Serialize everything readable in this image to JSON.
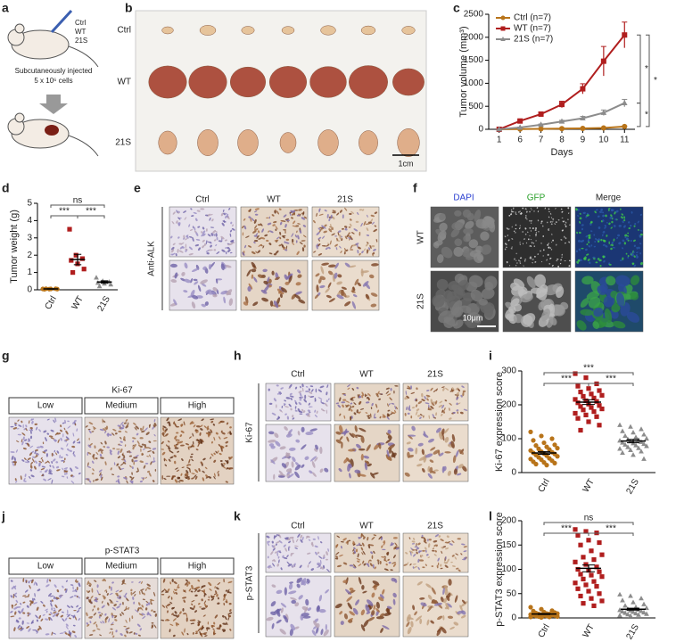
{
  "panel_labels": [
    "a",
    "b",
    "c",
    "d",
    "e",
    "f",
    "g",
    "h",
    "i",
    "j",
    "k",
    "l"
  ],
  "a": {
    "groups": [
      "Ctrl",
      "WT",
      "21S"
    ],
    "caption": [
      "Subcutaneously injected",
      "5 x 10⁶ cells"
    ]
  },
  "b": {
    "rows": [
      "Ctrl",
      "WT",
      "21S"
    ],
    "scale_bar": "1cm"
  },
  "e": {
    "columns": [
      "Ctrl",
      "WT",
      "21S"
    ],
    "row_label": "Anti-ALK"
  },
  "f": {
    "columns": [
      "DAPI",
      "GFP",
      "Merge"
    ],
    "rows": [
      "WT",
      "21S"
    ],
    "scale_bar": "10μm"
  },
  "g": {
    "title": "Ki-67",
    "columns": [
      "Low",
      "Medium",
      "High"
    ]
  },
  "h": {
    "columns": [
      "Ctrl",
      "WT",
      "21S"
    ],
    "row_label": "Ki-67"
  },
  "j": {
    "title": "p-STAT3",
    "columns": [
      "Low",
      "Medium",
      "High"
    ]
  },
  "k": {
    "columns": [
      "Ctrl",
      "WT",
      "21S"
    ],
    "row_label": "p-STAT3"
  },
  "chart_data": [
    {
      "type": "line",
      "ylabel": "Tumor volume (mm³)",
      "xlabel": "Days",
      "categories": [
        "1",
        "6",
        "7",
        "8",
        "9",
        "10",
        "11"
      ],
      "series": [
        {
          "name": "Ctrl (n=7)",
          "color": "#b8741a",
          "marker": "circle",
          "values": [
            0,
            5,
            10,
            15,
            20,
            30,
            60
          ],
          "errors": [
            0,
            3,
            4,
            5,
            6,
            8,
            12
          ]
        },
        {
          "name": "WT (n=7)",
          "color": "#b01e1e",
          "marker": "square",
          "values": [
            0,
            180,
            330,
            540,
            880,
            1480,
            2050
          ],
          "errors": [
            0,
            20,
            40,
            70,
            110,
            320,
            280
          ]
        },
        {
          "name": "21S (n=7)",
          "color": "#8c8c8c",
          "marker": "triangle",
          "values": [
            0,
            40,
            100,
            170,
            240,
            360,
            570
          ],
          "errors": [
            0,
            8,
            15,
            25,
            40,
            60,
            80
          ]
        }
      ],
      "ylim": [
        0,
        2500
      ],
      "yticks": [
        0,
        500,
        1000,
        1500,
        2000,
        2500
      ],
      "sig_wt_ctrl": "*",
      "sig_wt_21s": "*",
      "sig_21s_ctrl": "*"
    },
    {
      "type": "dot",
      "ylabel": "Tumor weight (g)",
      "categories": [
        "Ctrl",
        "WT",
        "21S"
      ],
      "colors": [
        "#b8741a",
        "#b01e1e",
        "#8c8c8c"
      ],
      "markers": [
        "circle",
        "square",
        "triangle"
      ],
      "values": [
        [
          0.05,
          0.04,
          0.06,
          0.03,
          0.05,
          0.04,
          0.06
        ],
        [
          3.5,
          2.0,
          1.8,
          1.7,
          1.5,
          1.2,
          1.0
        ],
        [
          0.7,
          0.5,
          0.45,
          0.4,
          0.35,
          0.3,
          0.2
        ]
      ],
      "means": [
        0.05,
        1.75,
        0.45
      ],
      "errors": [
        0.01,
        0.3,
        0.07
      ],
      "ylim": [
        0,
        5
      ],
      "yticks": [
        0,
        1,
        2,
        3,
        4,
        5
      ],
      "sig_ctrl_21s": "ns",
      "sig_ctrl_wt": "***",
      "sig_wt_21s": "***"
    },
    {
      "type": "dot",
      "ylabel": "Ki-67 expression score",
      "categories": [
        "Ctrl",
        "WT",
        "21S"
      ],
      "colors": [
        "#b8741a",
        "#b01e1e",
        "#8c8c8c"
      ],
      "markers": [
        "circle",
        "square",
        "triangle"
      ],
      "values": [
        [
          120,
          108,
          100,
          95,
          88,
          82,
          80,
          76,
          72,
          70,
          68,
          65,
          62,
          60,
          58,
          56,
          55,
          52,
          50,
          48,
          45,
          42,
          40,
          38,
          35,
          32,
          30,
          28,
          25,
          22
        ],
        [
          292,
          280,
          262,
          255,
          248,
          242,
          238,
          232,
          228,
          225,
          220,
          216,
          212,
          210,
          206,
          202,
          198,
          195,
          192,
          188,
          185,
          180,
          175,
          170,
          165,
          160,
          150,
          140,
          125
        ],
        [
          140,
          135,
          128,
          122,
          118,
          112,
          108,
          104,
          100,
          98,
          96,
          94,
          92,
          90,
          88,
          86,
          84,
          82,
          80,
          78,
          75,
          72,
          70,
          66,
          62,
          58,
          52,
          40
        ]
      ],
      "means": [
        58,
        208,
        93
      ],
      "errors": [
        4,
        7,
        5
      ],
      "ylim": [
        0,
        300
      ],
      "yticks": [
        0,
        100,
        200,
        300
      ],
      "sig_ctrl_21s": "***",
      "sig_ctrl_wt": "***",
      "sig_wt_21s": "***"
    },
    {
      "type": "dot",
      "ylabel": "p-STAT3 expression score",
      "categories": [
        "Ctrl",
        "WT",
        "21S"
      ],
      "colors": [
        "#b8741a",
        "#b01e1e",
        "#8c8c8c"
      ],
      "markers": [
        "circle",
        "square",
        "triangle"
      ],
      "values": [
        [
          22,
          18,
          15,
          14,
          12,
          11,
          10,
          9,
          9,
          8,
          8,
          7,
          7,
          6,
          6,
          5,
          5,
          4,
          4,
          3,
          3,
          2,
          2,
          1
        ],
        [
          182,
          178,
          175,
          170,
          160,
          155,
          150,
          138,
          130,
          125,
          120,
          115,
          110,
          105,
          100,
          98,
          95,
          90,
          88,
          85,
          80,
          75,
          72,
          68,
          65,
          60,
          55,
          50,
          45,
          40,
          35,
          30,
          25
        ],
        [
          48,
          45,
          40,
          36,
          32,
          28,
          25,
          22,
          20,
          18,
          17,
          16,
          15,
          14,
          13,
          12,
          11,
          10,
          9,
          8,
          7,
          6,
          5,
          4
        ]
      ],
      "means": [
        8,
        102,
        18
      ],
      "errors": [
        1,
        7,
        2
      ],
      "ylim": [
        0,
        200
      ],
      "yticks": [
        0,
        50,
        100,
        150,
        200
      ],
      "sig_ctrl_21s": "ns",
      "sig_ctrl_wt": "***",
      "sig_wt_21s": "***"
    }
  ]
}
